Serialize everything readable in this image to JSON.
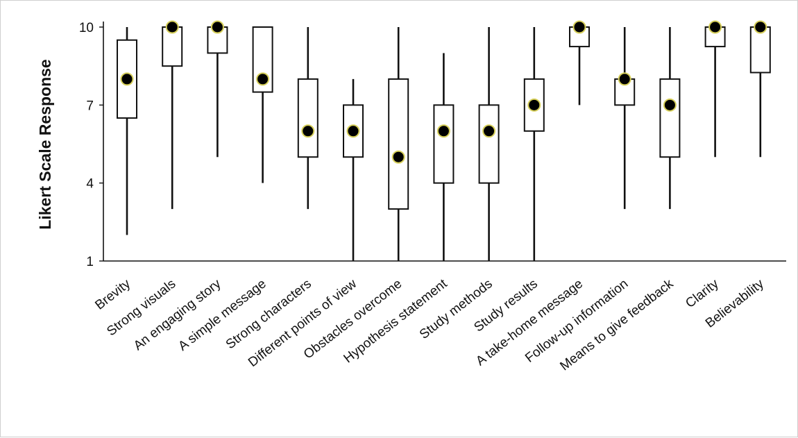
{
  "chart_data": {
    "type": "boxplot",
    "title": "",
    "xlabel": "",
    "ylabel": "Likert Scale Response",
    "ylim": [
      1,
      10
    ],
    "yticks": [
      1,
      4,
      7,
      10
    ],
    "grid": false,
    "legend": "none",
    "colors": {
      "box_stroke": "#111111",
      "median_marker": "#000000",
      "median_outline": "#d6cf5a"
    },
    "categories": [
      "Brevity",
      "Strong visuals",
      "An engaging story",
      "A simple message",
      "Strong characters",
      "Different points of view",
      "Obstacles overcome",
      "Hypothesis statement",
      "Study methods",
      "Study results",
      "A take-home message",
      "Follow-up information",
      "Means to give feedback",
      "Clarity",
      "Believability"
    ],
    "series": [
      {
        "min": [
          2,
          3,
          5,
          4,
          3,
          1,
          1,
          1,
          1,
          1,
          7,
          3,
          3,
          5,
          5
        ],
        "q1": [
          6.5,
          8.5,
          9,
          7.5,
          5,
          5,
          3,
          4,
          4,
          6,
          9.25,
          7,
          5,
          9.25,
          8.25
        ],
        "median": [
          8,
          10,
          10,
          8,
          6,
          6,
          5,
          6,
          6,
          7,
          10,
          8,
          7,
          10,
          10
        ],
        "q3": [
          9.5,
          10,
          10,
          10,
          8,
          7,
          8,
          7,
          7,
          8,
          10,
          8,
          8,
          10,
          10
        ],
        "max": [
          10,
          10,
          10,
          10,
          10,
          8,
          10,
          9,
          10,
          10,
          10,
          10,
          10,
          10,
          10
        ]
      }
    ]
  }
}
